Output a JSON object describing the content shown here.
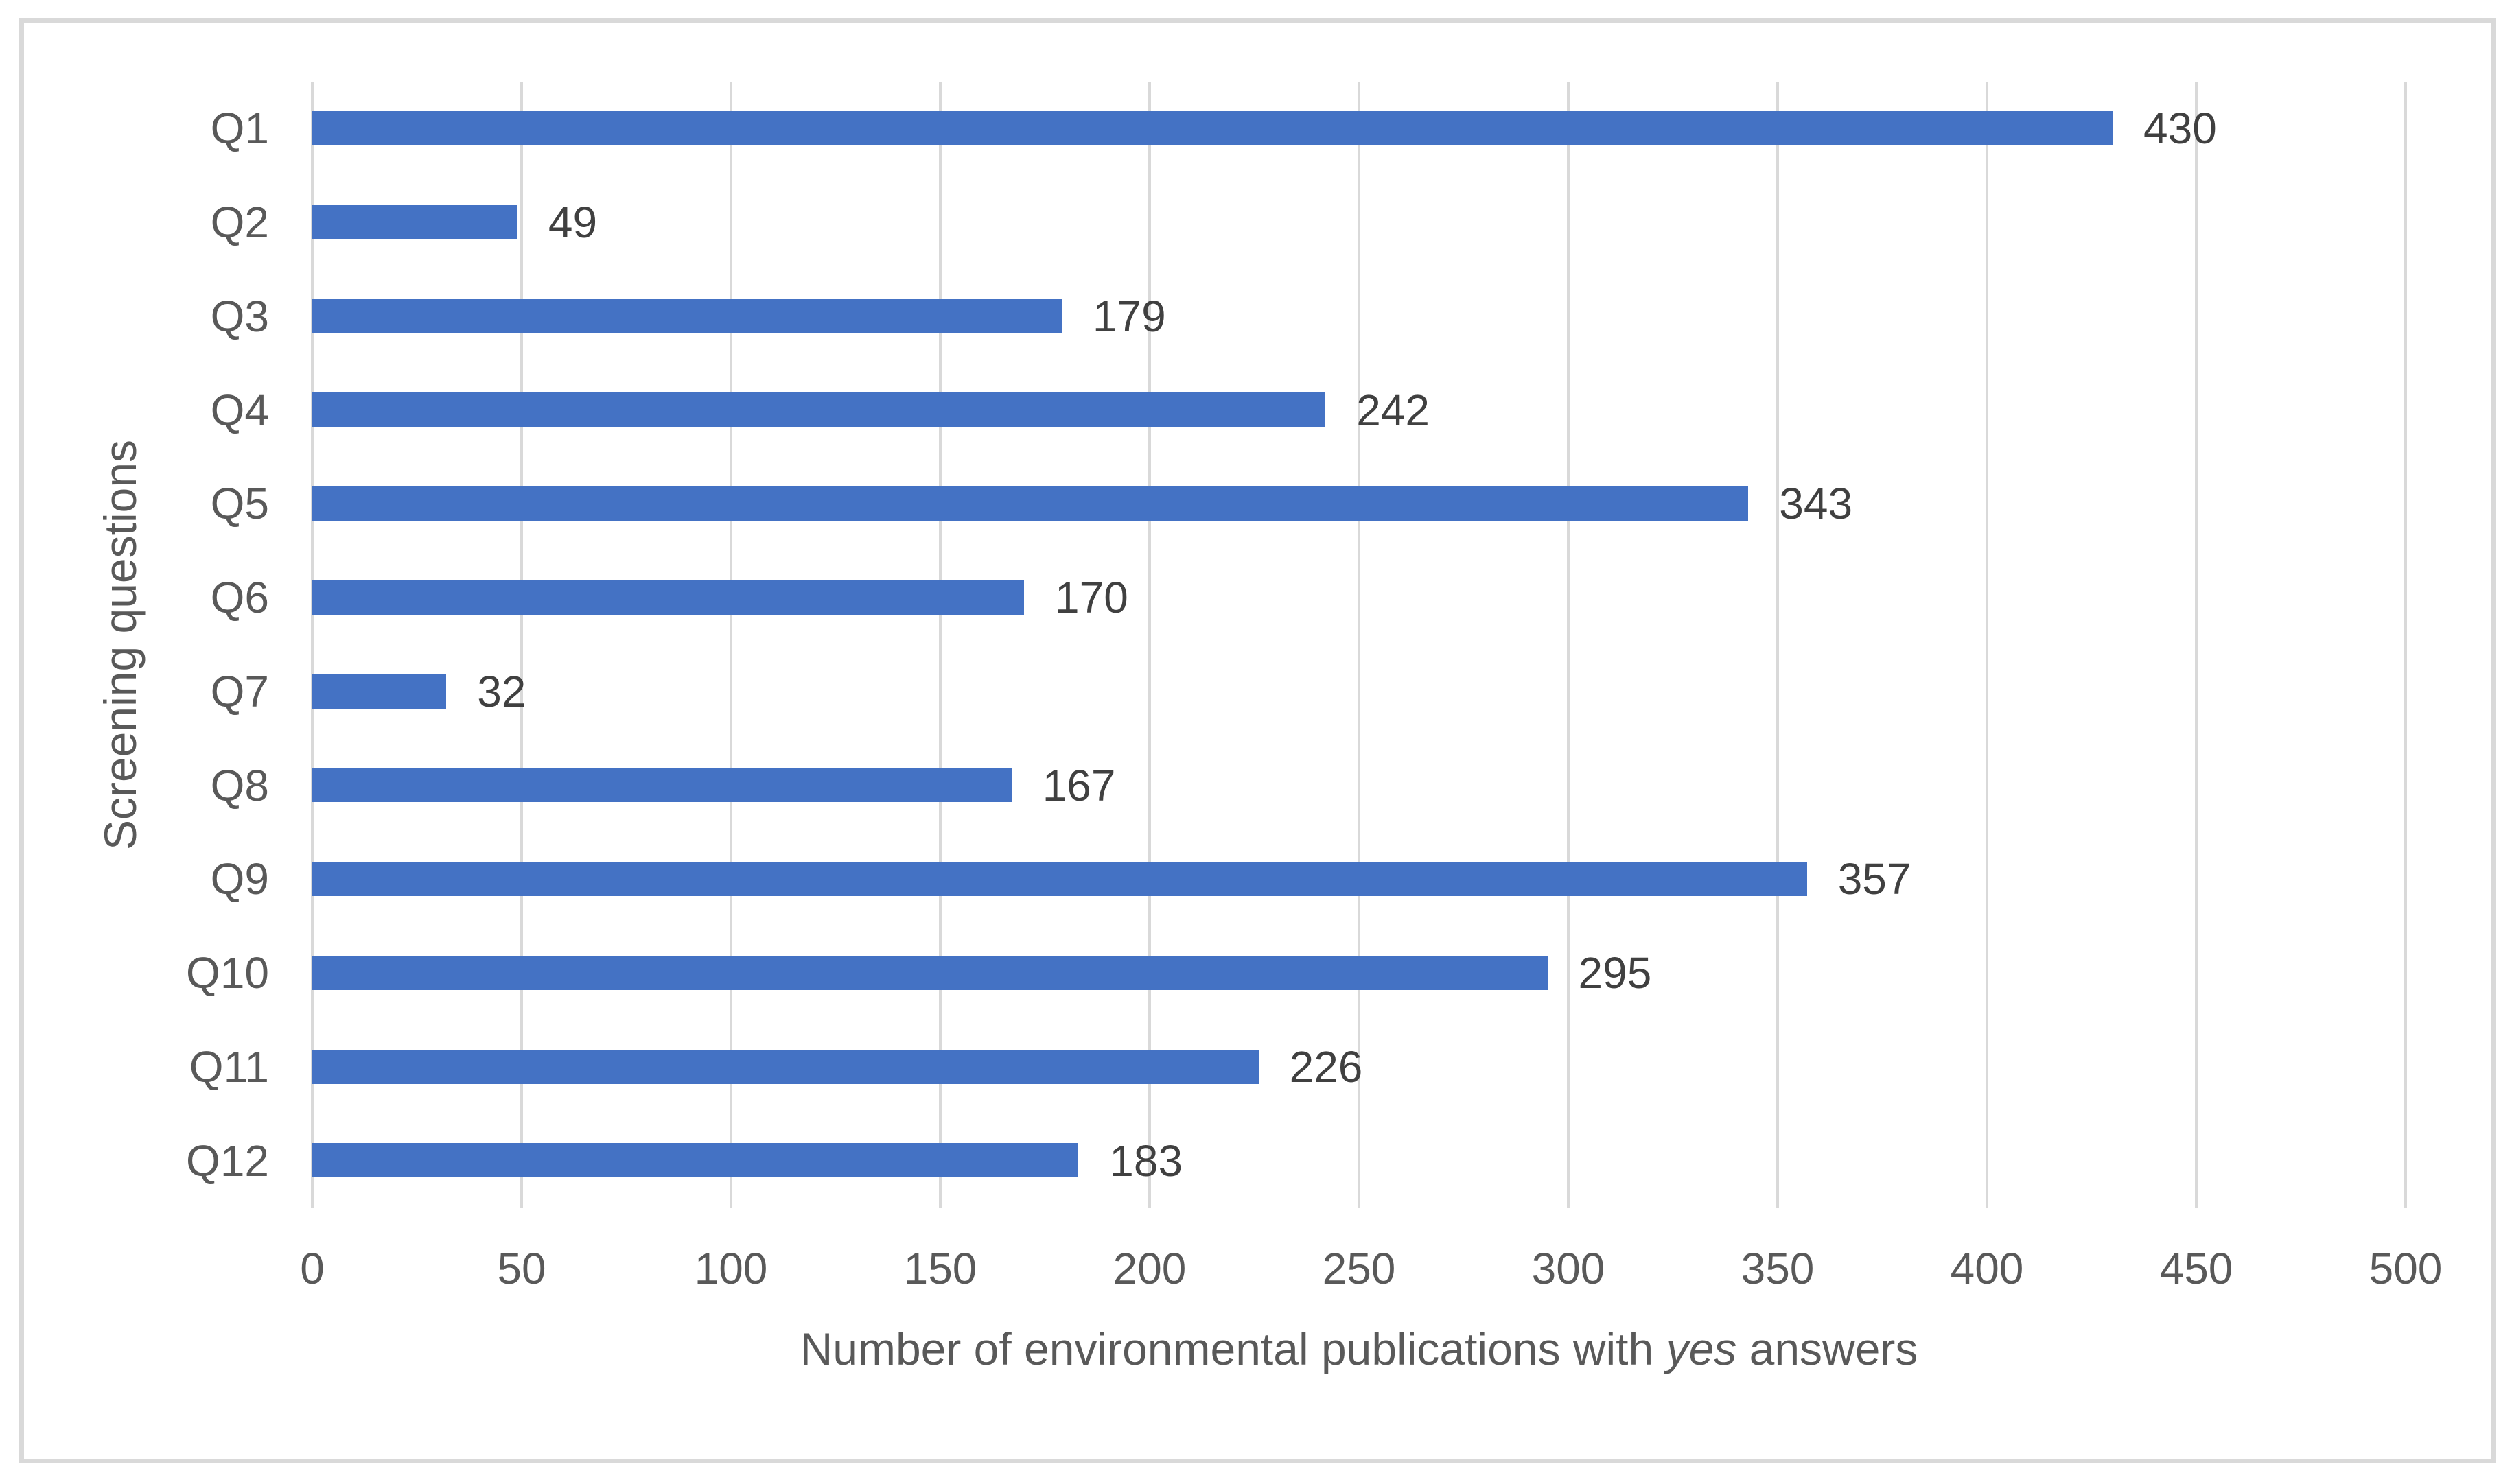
{
  "chart_data": {
    "type": "bar",
    "orientation": "horizontal",
    "categories": [
      "Q1",
      "Q2",
      "Q3",
      "Q4",
      "Q5",
      "Q6",
      "Q7",
      "Q8",
      "Q9",
      "Q10",
      "Q11",
      "Q12"
    ],
    "values": [
      430,
      49,
      179,
      242,
      343,
      170,
      32,
      167,
      357,
      295,
      226,
      183
    ],
    "data_labels": [
      "430",
      "49",
      "179",
      "242",
      "343",
      "170",
      "32",
      "167",
      "357",
      "295",
      "226",
      "183"
    ],
    "xlabel": "Number of environmental publications with yes answers",
    "xlabel_parts": {
      "prefix": "Number of environmental publications with ",
      "italic": "yes",
      "suffix": " answers"
    },
    "ylabel": "Screening questions",
    "xlim": [
      0,
      500
    ],
    "xticks": [
      0,
      50,
      100,
      150,
      200,
      250,
      300,
      350,
      400,
      450,
      500
    ],
    "grid": "vertical",
    "legend": "none",
    "bar_color": "#4472C4",
    "gridline_color": "#D9D9D9",
    "axis_label_color": "#595959",
    "data_label_color": "#404040",
    "border_color": "#D9D9D9"
  }
}
